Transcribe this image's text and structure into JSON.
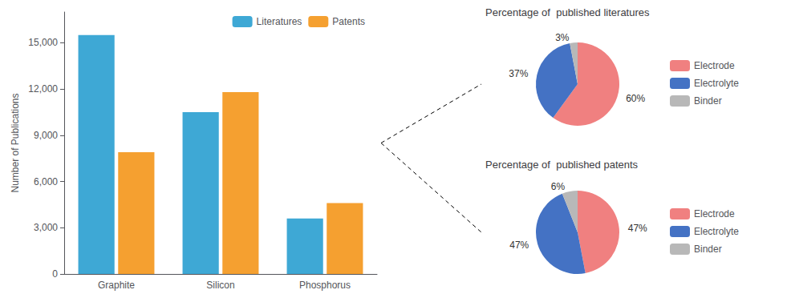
{
  "chart_data": [
    {
      "type": "bar",
      "categories": [
        "Graphite",
        "Silicon",
        "Phosphorus"
      ],
      "series": [
        {
          "name": "Literatures",
          "color": "#3ea8d5",
          "values": [
            15500,
            10500,
            3600
          ]
        },
        {
          "name": "Patents",
          "color": "#f5a030",
          "values": [
            7900,
            11800,
            4600
          ]
        }
      ],
      "ylabel": "Number of Publications",
      "ylim": [
        0,
        17000
      ],
      "yticks": [
        0,
        3000,
        6000,
        9000,
        12000,
        15000
      ],
      "grid": false,
      "legend": "upper right"
    },
    {
      "type": "pie",
      "title": "Percentage of  published literatures",
      "categories": [
        "Electrode",
        "Electrolyte",
        "Binder"
      ],
      "values": [
        60,
        37,
        3
      ],
      "value_labels": [
        "60%",
        "37%",
        "3%"
      ],
      "colors": [
        "#f08080",
        "#4472c4",
        "#b8b8b8"
      ],
      "data_labels": true,
      "legend": "right"
    },
    {
      "type": "pie",
      "title": "Percentage of  published patents",
      "categories": [
        "Electrode",
        "Electrolyte",
        "Binder"
      ],
      "values": [
        47,
        47,
        6
      ],
      "value_labels": [
        "47%",
        "47%",
        "6%"
      ],
      "colors": [
        "#f08080",
        "#4472c4",
        "#b8b8b8"
      ],
      "data_labels": true,
      "legend": "right"
    }
  ]
}
